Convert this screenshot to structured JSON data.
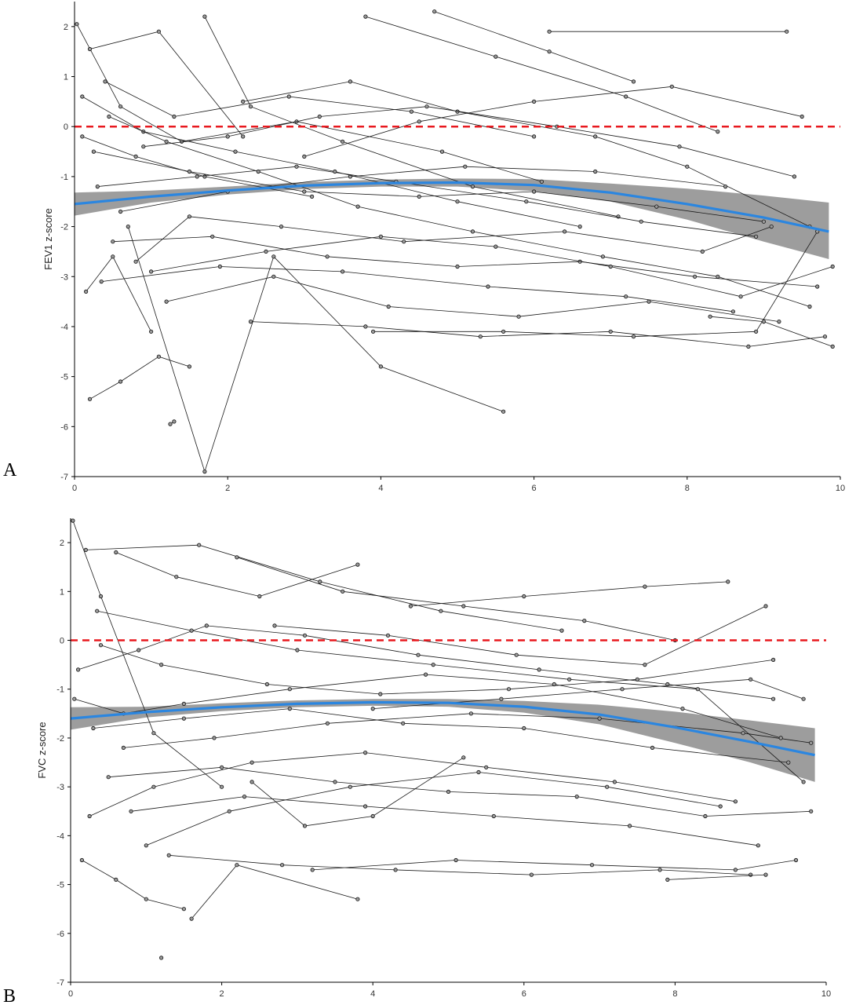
{
  "chart_data": [
    {
      "type": "line",
      "panel_label": "A",
      "title": "",
      "xlabel": "",
      "ylabel": "FEV1 z-score",
      "xlim": [
        0,
        10
      ],
      "ylim": [
        -7,
        2.5
      ],
      "x_ticks": [
        "0",
        "2",
        "4",
        "6",
        "8",
        "10"
      ],
      "y_ticks": [
        "2",
        "1",
        "0",
        "-1",
        "-2",
        "-3",
        "-4",
        "-5",
        "-6",
        "-7"
      ],
      "grid": false,
      "reference_line": {
        "y": 0,
        "color": "#e8191f",
        "style": "dashed"
      },
      "trend": {
        "color": "#2b86e0",
        "x": [
          0,
          1,
          2,
          3,
          4,
          5,
          6,
          7,
          8,
          9,
          9.85
        ],
        "y": [
          -1.55,
          -1.4,
          -1.28,
          -1.18,
          -1.13,
          -1.12,
          -1.17,
          -1.32,
          -1.55,
          -1.82,
          -2.1
        ],
        "ci_lower": [
          -1.78,
          -1.52,
          -1.36,
          -1.25,
          -1.2,
          -1.2,
          -1.29,
          -1.5,
          -1.86,
          -2.3,
          -2.65
        ],
        "ci_upper": [
          -1.32,
          -1.28,
          -1.2,
          -1.11,
          -1.06,
          -1.04,
          -1.05,
          -1.14,
          -1.24,
          -1.38,
          -1.52
        ],
        "ci_color": "#8c8c8c"
      },
      "series": [
        {
          "x": [
            0.03,
            0.6,
            1.4,
            2.9,
            4.8,
            6.1
          ],
          "y": [
            2.05,
            0.4,
            -0.3,
            0.1,
            -0.5,
            -1.1
          ]
        },
        {
          "x": [
            0.2,
            1.1,
            2.2
          ],
          "y": [
            1.55,
            1.9,
            -0.2
          ]
        },
        {
          "x": [
            0.1,
            0.8,
            1.7,
            3.1
          ],
          "y": [
            -0.2,
            -0.6,
            -1.0,
            -1.4
          ]
        },
        {
          "x": [
            0.15,
            0.5,
            1.0
          ],
          "y": [
            -3.3,
            -2.6,
            -4.1
          ]
        },
        {
          "x": [
            0.4,
            1.3,
            2.8,
            4.4,
            6.0
          ],
          "y": [
            0.9,
            0.2,
            0.6,
            0.3,
            -0.2
          ]
        },
        {
          "x": [
            1.7,
            2.3,
            3.5,
            5.2,
            7.1
          ],
          "y": [
            2.2,
            0.4,
            -0.3,
            -1.2,
            -1.8
          ]
        },
        {
          "x": [
            0.7,
            1.7,
            2.6,
            4.0,
            5.6
          ],
          "y": [
            -2.0,
            -6.9,
            -2.6,
            -4.8,
            -5.7
          ]
        },
        {
          "x": [
            4.7,
            6.2,
            7.3
          ],
          "y": [
            2.3,
            1.5,
            0.9
          ]
        },
        {
          "x": [
            3.8,
            5.5,
            7.2,
            8.4
          ],
          "y": [
            2.2,
            1.4,
            0.6,
            -0.1
          ]
        },
        {
          "x": [
            6.2,
            9.3
          ],
          "y": [
            1.9,
            1.9
          ]
        },
        {
          "x": [
            2.2,
            3.6,
            5.0,
            6.8,
            8.0,
            9.6
          ],
          "y": [
            0.5,
            0.9,
            0.3,
            -0.2,
            -0.8,
            -2.0
          ]
        },
        {
          "x": [
            0.9,
            2.0,
            3.2,
            4.6,
            6.3,
            7.9,
            9.4
          ],
          "y": [
            -0.4,
            -0.2,
            0.2,
            0.4,
            0.0,
            -0.4,
            -1.0
          ]
        },
        {
          "x": [
            0.3,
            1.6,
            2.9,
            4.2,
            5.9,
            7.4,
            8.9
          ],
          "y": [
            -1.2,
            -1.0,
            -0.8,
            -1.1,
            -1.5,
            -1.9,
            -2.2
          ]
        },
        {
          "x": [
            0.5,
            1.8,
            3.3,
            5.0,
            6.6,
            8.1,
            9.7
          ],
          "y": [
            -2.3,
            -2.2,
            -2.6,
            -2.8,
            -2.7,
            -3.0,
            -3.2
          ]
        },
        {
          "x": [
            1.2,
            2.6,
            4.1,
            5.8,
            7.5,
            9.2
          ],
          "y": [
            -3.5,
            -3.0,
            -3.6,
            -3.8,
            -3.5,
            -3.9
          ]
        },
        {
          "x": [
            2.3,
            3.8,
            5.3,
            7.0,
            8.8,
            9.8
          ],
          "y": [
            -3.9,
            -4.0,
            -4.2,
            -4.1,
            -4.4,
            -4.2
          ]
        },
        {
          "x": [
            0.2,
            0.6,
            1.1,
            1.5
          ],
          "y": [
            -5.45,
            -5.1,
            -4.6,
            -4.8
          ]
        },
        {
          "x": [
            1.25,
            1.3
          ],
          "y": [
            -5.95,
            -5.9
          ]
        },
        {
          "x": [
            0.25,
            1.5,
            3.0,
            4.5,
            6.0,
            7.6,
            9.0
          ],
          "y": [
            -0.5,
            -0.9,
            -1.3,
            -1.4,
            -1.3,
            -1.6,
            -1.9
          ]
        },
        {
          "x": [
            0.6,
            2.0,
            3.6,
            5.1,
            6.8,
            8.5
          ],
          "y": [
            -1.7,
            -1.3,
            -1.0,
            -0.8,
            -0.9,
            -1.2
          ]
        },
        {
          "x": [
            1.0,
            2.5,
            4.0,
            5.5,
            7.0,
            8.7,
            9.9
          ],
          "y": [
            -2.9,
            -2.5,
            -2.2,
            -2.4,
            -2.8,
            -3.4,
            -2.8
          ]
        },
        {
          "x": [
            3.0,
            4.5,
            6.0,
            7.8,
            9.5
          ],
          "y": [
            -0.6,
            0.1,
            0.5,
            0.8,
            0.2
          ]
        },
        {
          "x": [
            0.1,
            0.9,
            2.1,
            3.4,
            5.0,
            6.6
          ],
          "y": [
            0.6,
            -0.1,
            -0.5,
            -0.9,
            -1.5,
            -2.0
          ]
        },
        {
          "x": [
            0.8,
            1.5,
            2.7,
            4.3,
            6.4,
            8.2,
            9.1
          ],
          "y": [
            -2.7,
            -1.8,
            -2.0,
            -2.3,
            -2.1,
            -2.5,
            -2.0
          ]
        },
        {
          "x": [
            0.45,
            1.2,
            2.4,
            3.7,
            5.2,
            6.9,
            8.4,
            9.6
          ],
          "y": [
            0.2,
            -0.3,
            -0.9,
            -1.6,
            -2.1,
            -2.6,
            -3.0,
            -3.6
          ]
        },
        {
          "x": [
            3.9,
            5.6,
            7.3,
            8.9,
            9.7
          ],
          "y": [
            -4.1,
            -4.1,
            -4.2,
            -4.1,
            -2.1
          ]
        },
        {
          "x": [
            8.3,
            9.0,
            9.9
          ],
          "y": [
            -3.8,
            -3.9,
            -4.4
          ]
        },
        {
          "x": [
            0.35,
            1.9,
            3.5,
            5.4,
            7.2,
            8.6
          ],
          "y": [
            -3.1,
            -2.8,
            -2.9,
            -3.2,
            -3.4,
            -3.7
          ]
        }
      ]
    },
    {
      "type": "line",
      "panel_label": "B",
      "title": "",
      "xlabel": "",
      "ylabel": "FVC z-score",
      "xlim": [
        0,
        10
      ],
      "ylim": [
        -7,
        2.5
      ],
      "x_ticks": [
        "0",
        "2",
        "4",
        "6",
        "8",
        "10"
      ],
      "y_ticks": [
        "2",
        "1",
        "0",
        "-1",
        "-2",
        "-3",
        "-4",
        "-5",
        "-6",
        "-7"
      ],
      "grid": false,
      "reference_line": {
        "y": 0,
        "color": "#e8191f",
        "style": "dashed"
      },
      "trend": {
        "color": "#2b86e0",
        "x": [
          0,
          1,
          2,
          3,
          4,
          5,
          6,
          7,
          8,
          9,
          9.85
        ],
        "y": [
          -1.6,
          -1.47,
          -1.37,
          -1.3,
          -1.27,
          -1.28,
          -1.36,
          -1.52,
          -1.78,
          -2.08,
          -2.35
        ],
        "ci_lower": [
          -1.83,
          -1.58,
          -1.45,
          -1.37,
          -1.34,
          -1.36,
          -1.48,
          -1.72,
          -2.1,
          -2.5,
          -2.9
        ],
        "ci_upper": [
          -1.37,
          -1.36,
          -1.29,
          -1.23,
          -1.2,
          -1.2,
          -1.24,
          -1.32,
          -1.46,
          -1.64,
          -1.8
        ],
        "ci_color": "#8c8c8c"
      },
      "series": [
        {
          "x": [
            0.03,
            0.4,
            1.1,
            2.0
          ],
          "y": [
            2.45,
            0.9,
            -1.9,
            -3.0
          ]
        },
        {
          "x": [
            0.2,
            1.7,
            3.3,
            4.9,
            6.5
          ],
          "y": [
            1.85,
            1.95,
            1.2,
            0.6,
            0.2
          ]
        },
        {
          "x": [
            0.6,
            1.4,
            2.5,
            3.8
          ],
          "y": [
            1.8,
            1.3,
            0.9,
            1.55
          ]
        },
        {
          "x": [
            2.2,
            3.6,
            5.2,
            6.8,
            8.0
          ],
          "y": [
            1.7,
            1.0,
            0.7,
            0.4,
            0.0
          ]
        },
        {
          "x": [
            4.5,
            6.0,
            7.6,
            8.7
          ],
          "y": [
            0.7,
            0.9,
            1.1,
            1.2
          ]
        },
        {
          "x": [
            0.1,
            0.9,
            1.8,
            3.1,
            4.6,
            6.2,
            7.9,
            9.3
          ],
          "y": [
            -0.6,
            -0.2,
            0.3,
            0.1,
            -0.3,
            -0.6,
            -0.9,
            -1.2
          ]
        },
        {
          "x": [
            0.3,
            1.5,
            2.9,
            4.4,
            6.0,
            7.7,
            9.5
          ],
          "y": [
            -1.8,
            -1.6,
            -1.4,
            -1.7,
            -1.8,
            -2.2,
            -2.5
          ]
        },
        {
          "x": [
            0.5,
            2.0,
            3.5,
            5.0,
            6.7,
            8.4,
            9.8
          ],
          "y": [
            -2.8,
            -2.6,
            -2.9,
            -3.1,
            -3.2,
            -3.6,
            -3.5
          ]
        },
        {
          "x": [
            0.15,
            0.6,
            1.0,
            1.5
          ],
          "y": [
            -4.5,
            -4.9,
            -5.3,
            -5.5
          ]
        },
        {
          "x": [
            1.2
          ],
          "y": [
            -6.5
          ]
        },
        {
          "x": [
            1.6,
            2.2,
            3.8
          ],
          "y": [
            -5.7,
            -4.6,
            -5.3
          ]
        },
        {
          "x": [
            1.3,
            2.8,
            4.3,
            6.1,
            7.8,
            9.0
          ],
          "y": [
            -4.4,
            -4.6,
            -4.7,
            -4.8,
            -4.7,
            -4.8
          ]
        },
        {
          "x": [
            3.2,
            5.1,
            6.9,
            8.8,
            9.6
          ],
          "y": [
            -4.7,
            -4.5,
            -4.6,
            -4.7,
            -4.5
          ]
        },
        {
          "x": [
            7.9,
            9.2
          ],
          "y": [
            -4.9,
            -4.8
          ]
        },
        {
          "x": [
            0.8,
            2.3,
            3.9,
            5.6,
            7.4,
            9.1
          ],
          "y": [
            -3.5,
            -3.2,
            -3.4,
            -3.6,
            -3.8,
            -4.2
          ]
        },
        {
          "x": [
            0.4,
            1.2,
            2.6,
            4.1,
            5.8,
            7.5,
            9.3
          ],
          "y": [
            -0.1,
            -0.5,
            -0.9,
            -1.1,
            -1.0,
            -0.8,
            -0.4
          ]
        },
        {
          "x": [
            2.7,
            4.2,
            5.9,
            7.6,
            9.2
          ],
          "y": [
            0.3,
            0.1,
            -0.3,
            -0.5,
            0.7
          ]
        },
        {
          "x": [
            0.7,
            1.9,
            3.4,
            5.3,
            7.0,
            8.9,
            9.8
          ],
          "y": [
            -2.2,
            -2.0,
            -1.7,
            -1.5,
            -1.6,
            -1.9,
            -2.1
          ]
        },
        {
          "x": [
            0.25,
            1.1,
            2.4,
            3.9,
            5.5,
            7.2,
            8.8
          ],
          "y": [
            -3.6,
            -3.0,
            -2.5,
            -2.3,
            -2.6,
            -2.9,
            -3.3
          ]
        },
        {
          "x": [
            1.0,
            2.1,
            3.7,
            5.4,
            7.1,
            8.6
          ],
          "y": [
            -4.2,
            -3.5,
            -3.0,
            -2.7,
            -3.0,
            -3.4
          ]
        },
        {
          "x": [
            4.0,
            5.7,
            7.3,
            9.0,
            9.7
          ],
          "y": [
            -1.4,
            -1.2,
            -1.0,
            -0.8,
            -1.2
          ]
        },
        {
          "x": [
            0.05,
            0.7,
            1.5,
            2.9,
            4.7,
            6.4,
            8.1,
            9.4
          ],
          "y": [
            -1.2,
            -1.5,
            -1.3,
            -1.0,
            -0.7,
            -0.9,
            -1.4,
            -2.0
          ]
        },
        {
          "x": [
            0.35,
            1.6,
            3.0,
            4.8,
            6.6,
            8.3,
            9.7
          ],
          "y": [
            0.6,
            0.2,
            -0.2,
            -0.5,
            -0.8,
            -1.0,
            -2.9
          ]
        },
        {
          "x": [
            2.4,
            3.1,
            4.0,
            5.2
          ],
          "y": [
            -2.9,
            -3.8,
            -3.6,
            -2.4
          ]
        }
      ]
    }
  ]
}
